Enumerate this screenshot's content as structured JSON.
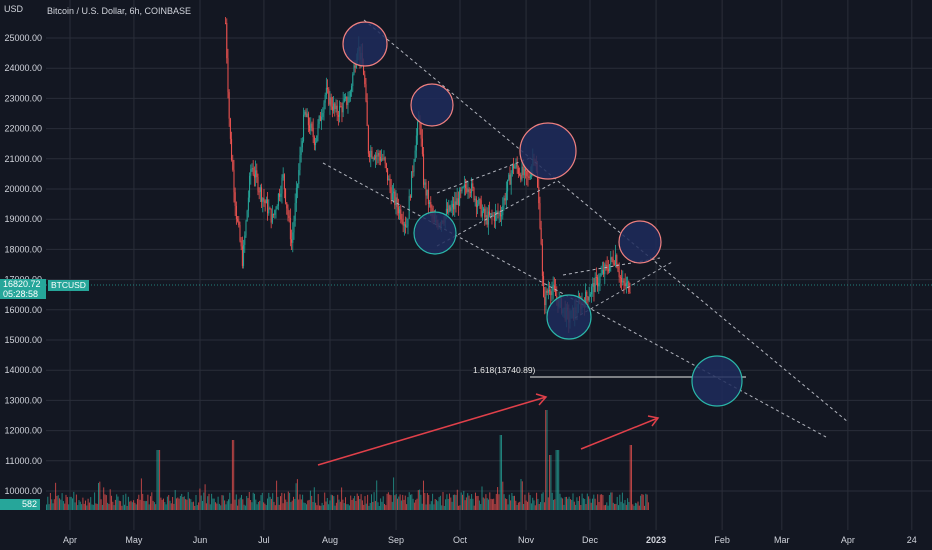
{
  "header": {
    "title": "Bitcoin / U.S. Dollar, 6h, COINBASE",
    "currency": "USD"
  },
  "price_tag": {
    "price": "16820.72",
    "countdown": "05:28:58",
    "symbol": "BTCUSD"
  },
  "volume_tag": "582",
  "colors": {
    "background": "#131722",
    "up": "#26a69a",
    "down": "#ef5350",
    "circle_fill": "#1e2b5c",
    "circle_red": "#f08080",
    "circle_teal": "#2ab7a9",
    "trendline": "#b2b5be",
    "arrow": "#e0404a",
    "price_tag": "#26a69a"
  },
  "chart_data": {
    "type": "candlestick",
    "y_tick_labels": [
      "25000.00",
      "24000.00",
      "23000.00",
      "22000.00",
      "21000.00",
      "20000.00",
      "19000.00",
      "18000.00",
      "17000.00",
      "16000.00",
      "15000.00",
      "14000.00",
      "13000.00",
      "12000.00",
      "11000.00",
      "10000.00"
    ],
    "x_tick_labels": [
      "Apr",
      "May",
      "Jun",
      "Jul",
      "Aug",
      "Sep",
      "Oct",
      "Nov",
      "Dec",
      "2023",
      "Feb",
      "Mar",
      "Apr",
      "24"
    ],
    "ylim": [
      9500,
      25500
    ],
    "fib_annotation": {
      "label": "1.618(13740.89)",
      "value": 13740.89
    },
    "price_series": [
      {
        "date": "2022-06-13",
        "price": 25500
      },
      {
        "date": "2022-06-15",
        "price": 21800
      },
      {
        "date": "2022-06-18",
        "price": 19200
      },
      {
        "date": "2022-06-21",
        "price": 17600
      },
      {
        "date": "2022-06-25",
        "price": 20800
      },
      {
        "date": "2022-06-30",
        "price": 19800
      },
      {
        "date": "2022-07-05",
        "price": 19000
      },
      {
        "date": "2022-07-10",
        "price": 20400
      },
      {
        "date": "2022-07-14",
        "price": 18200
      },
      {
        "date": "2022-07-20",
        "price": 22500
      },
      {
        "date": "2022-07-25",
        "price": 21600
      },
      {
        "date": "2022-07-30",
        "price": 23200
      },
      {
        "date": "2022-08-04",
        "price": 22500
      },
      {
        "date": "2022-08-10",
        "price": 23000
      },
      {
        "date": "2022-08-14",
        "price": 24800
      },
      {
        "date": "2022-08-17",
        "price": 23800
      },
      {
        "date": "2022-08-19",
        "price": 21300
      },
      {
        "date": "2022-08-26",
        "price": 21000
      },
      {
        "date": "2022-08-30",
        "price": 19800
      },
      {
        "date": "2022-09-06",
        "price": 18800
      },
      {
        "date": "2022-09-10",
        "price": 21500
      },
      {
        "date": "2022-09-12",
        "price": 22400
      },
      {
        "date": "2022-09-14",
        "price": 20200
      },
      {
        "date": "2022-09-19",
        "price": 18800
      },
      {
        "date": "2022-09-28",
        "price": 19400
      },
      {
        "date": "2022-10-05",
        "price": 20200
      },
      {
        "date": "2022-10-13",
        "price": 19000
      },
      {
        "date": "2022-10-20",
        "price": 19200
      },
      {
        "date": "2022-10-26",
        "price": 20800
      },
      {
        "date": "2022-11-02",
        "price": 20300
      },
      {
        "date": "2022-11-05",
        "price": 21300
      },
      {
        "date": "2022-11-08",
        "price": 18500
      },
      {
        "date": "2022-11-09",
        "price": 16200
      },
      {
        "date": "2022-11-12",
        "price": 16800
      },
      {
        "date": "2022-11-21",
        "price": 15700
      },
      {
        "date": "2022-11-28",
        "price": 16300
      },
      {
        "date": "2022-12-05",
        "price": 17000
      },
      {
        "date": "2022-12-13",
        "price": 17800
      },
      {
        "date": "2022-12-16",
        "price": 16800
      },
      {
        "date": "2022-12-20",
        "price": 16800
      }
    ]
  }
}
